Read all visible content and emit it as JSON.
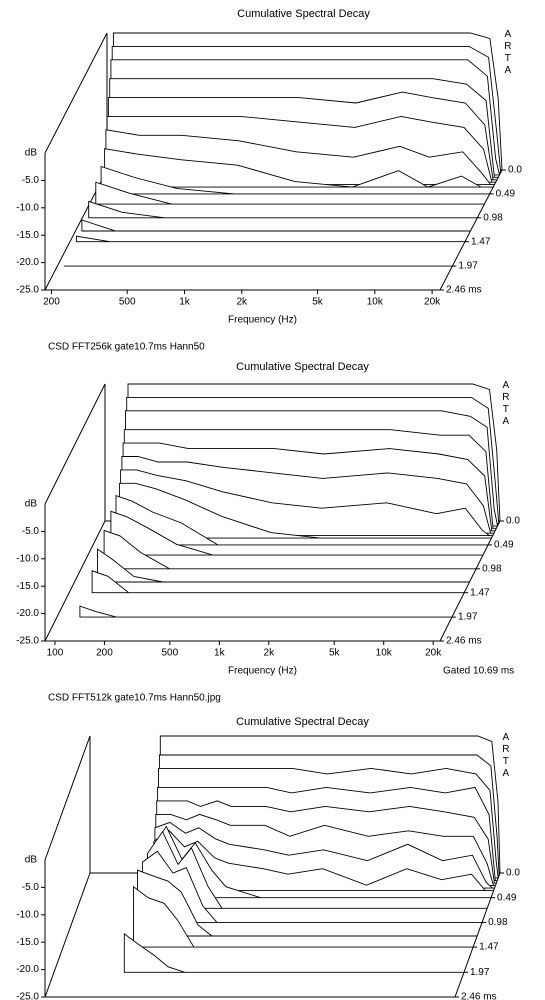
{
  "captions": [
    "CSD FFT256k gate10.7ms Hann50",
    "CSD FFT512k gate10.7ms Hann50.jpg"
  ],
  "chart_data": [
    {
      "type": "waterfall",
      "title": "Cumulative Spectral Decay",
      "xlabel": "Frequency (Hz)",
      "ylabel": "dB",
      "watermark": "ARTA",
      "log_x": true,
      "xlim": [
        185,
        22000
      ],
      "xticks": [
        200,
        500,
        {
          "value": 1000,
          "label": "1k"
        },
        {
          "value": 2000,
          "label": "2k"
        },
        {
          "value": 5000,
          "label": "5k"
        },
        {
          "value": 10000,
          "label": "10k"
        },
        {
          "value": 20000,
          "label": "20k"
        }
      ],
      "ylim": [
        -25,
        0
      ],
      "yticks": [
        {
          "value": -5,
          "label": "-5.0"
        },
        {
          "value": -10,
          "label": "-10.0"
        },
        {
          "value": -15,
          "label": "-15.0"
        },
        {
          "value": -20,
          "label": "-20.0"
        },
        {
          "value": -25,
          "label": "-25.0"
        }
      ],
      "tlim": [
        0,
        2.46
      ],
      "tticks": [
        {
          "value": 0,
          "label": "0.0"
        },
        0.49,
        0.98,
        1.47,
        1.97,
        {
          "value": 2.46,
          "label": "2.46 ms"
        }
      ],
      "x": [
        200,
        300,
        500,
        1000,
        2000,
        4000,
        7000,
        10000,
        15000,
        19000,
        21000
      ],
      "series": [
        {
          "time": 0,
          "values": [
            0,
            0,
            0,
            0,
            0,
            0,
            0,
            0,
            0,
            -1,
            -12
          ]
        },
        {
          "time": 0.05,
          "values": [
            -2,
            -2,
            -2,
            -2,
            -2,
            -2,
            -2,
            -2,
            -2,
            -4,
            -18
          ]
        },
        {
          "time": 0.1,
          "values": [
            -4,
            -4,
            -4,
            -4,
            -4,
            -4,
            -4,
            -4,
            -4,
            -7,
            -22
          ]
        },
        {
          "time": 0.15,
          "values": [
            -7,
            -7,
            -7,
            -7,
            -7,
            -7,
            -7,
            -7,
            -8,
            -11,
            -25
          ]
        },
        {
          "time": 0.2,
          "values": [
            -10,
            -10,
            -10,
            -10,
            -10,
            -11,
            -9,
            -10,
            -11,
            -15,
            -25
          ]
        },
        {
          "time": 0.25,
          "values": [
            -13,
            -13,
            -13,
            -13,
            -14,
            -15,
            -13,
            -14,
            -15,
            -19,
            -25
          ]
        },
        {
          "time": 0.3,
          "values": [
            -15,
            -16,
            -16,
            -17,
            -19,
            -20,
            -18,
            -20,
            -19,
            -23,
            -25
          ]
        },
        {
          "time": 0.35,
          "values": [
            -18,
            -19,
            -20,
            -21,
            -24,
            -25,
            -22,
            -25,
            -23,
            -25,
            -25
          ]
        },
        {
          "time": 0.49,
          "values": [
            -20,
            -22,
            -24,
            -25,
            -25,
            -25,
            -25,
            -25,
            -25,
            -25,
            -25
          ]
        },
        {
          "time": 0.7,
          "values": [
            -21,
            -23,
            -25,
            -25,
            -25,
            -25,
            -25,
            -25,
            -25,
            -25,
            -25
          ]
        },
        {
          "time": 0.98,
          "values": [
            -22,
            -24,
            -25,
            -25,
            -25,
            -25,
            -25,
            -25,
            -25,
            -25,
            -25
          ]
        },
        {
          "time": 1.25,
          "values": [
            -23,
            -25,
            -25,
            -25,
            -25,
            -25,
            -25,
            -25,
            -25,
            -25,
            -25
          ]
        },
        {
          "time": 1.47,
          "values": [
            -24,
            -25,
            -25,
            -25,
            -25,
            -25,
            -25,
            -25,
            -25,
            -25,
            -25
          ]
        },
        {
          "time": 1.97,
          "values": [
            -25,
            -25,
            -25,
            -25,
            -25,
            -25,
            -25,
            -25,
            -25,
            -25,
            -25
          ]
        },
        {
          "time": 2.46,
          "values": [
            -25,
            -25,
            -25,
            -25,
            -25,
            -25,
            -25,
            -25,
            -25,
            -25,
            -25
          ]
        }
      ]
    },
    {
      "type": "waterfall",
      "title": "Cumulative Spectral Decay",
      "xlabel": "Frequency (Hz)",
      "ylabel": "dB",
      "watermark": "ARTA",
      "note": "Gated 10.69 ms",
      "log_x": true,
      "xlim": [
        87,
        22000
      ],
      "xticks": [
        100,
        200,
        500,
        {
          "value": 1000,
          "label": "1k"
        },
        {
          "value": 2000,
          "label": "2k"
        },
        {
          "value": 5000,
          "label": "5k"
        },
        {
          "value": 10000,
          "label": "10k"
        },
        {
          "value": 20000,
          "label": "20k"
        }
      ],
      "ylim": [
        -25,
        0
      ],
      "yticks": [
        {
          "value": -5,
          "label": "-5.0"
        },
        {
          "value": -10,
          "label": "-10.0"
        },
        {
          "value": -15,
          "label": "-15.0"
        },
        {
          "value": -20,
          "label": "-20.0"
        },
        {
          "value": -25,
          "label": "-25.0"
        }
      ],
      "tlim": [
        0,
        2.46
      ],
      "tticks": [
        {
          "value": 0,
          "label": "0.0"
        },
        0.49,
        0.98,
        1.47,
        1.97,
        {
          "value": 2.46,
          "label": "2.46 ms"
        }
      ],
      "x": [
        120,
        150,
        200,
        300,
        500,
        1000,
        2000,
        5000,
        10000,
        15000,
        19000,
        21000
      ],
      "series": [
        {
          "time": 0,
          "values": [
            0,
            0,
            0,
            0,
            0,
            0,
            0,
            0,
            0,
            0,
            -1,
            -12
          ]
        },
        {
          "time": 0.05,
          "values": [
            -2,
            -2,
            -2,
            -2,
            -2,
            -2,
            -2,
            -2,
            -2,
            -2,
            -4,
            -18
          ]
        },
        {
          "time": 0.1,
          "values": [
            -4,
            -4,
            -4,
            -4,
            -4,
            -4,
            -4,
            -4,
            -4,
            -5,
            -7,
            -22
          ]
        },
        {
          "time": 0.15,
          "values": [
            -7,
            -7,
            -7,
            -7,
            -7,
            -7,
            -7,
            -7,
            -8,
            -8,
            -11,
            -25
          ]
        },
        {
          "time": 0.2,
          "values": [
            -9,
            -9,
            -9,
            -10,
            -10,
            -10,
            -11,
            -10,
            -11,
            -12,
            -15,
            -25
          ]
        },
        {
          "time": 0.25,
          "values": [
            -11,
            -11,
            -12,
            -12,
            -13,
            -14,
            -15,
            -14,
            -15,
            -16,
            -20,
            -25
          ]
        },
        {
          "time": 0.3,
          "values": [
            -13,
            -13,
            -14,
            -15,
            -17,
            -19,
            -20,
            -19,
            -21,
            -20,
            -24,
            -25
          ]
        },
        {
          "time": 0.35,
          "values": [
            -15,
            -15,
            -16,
            -18,
            -21,
            -24,
            -25,
            -25,
            -25,
            -25,
            -25,
            -25
          ]
        },
        {
          "time": 0.49,
          "values": [
            -16,
            -17,
            -19,
            -21,
            -25,
            -25,
            -25,
            -25,
            -25,
            -25,
            -25,
            -25
          ]
        },
        {
          "time": 0.7,
          "values": [
            -17,
            -18,
            -20,
            -23,
            -25,
            -25,
            -25,
            -25,
            -25,
            -25,
            -25,
            -25
          ]
        },
        {
          "time": 0.98,
          "values": [
            -18,
            -19,
            -22,
            -25,
            -25,
            -25,
            -25,
            -25,
            -25,
            -25,
            -25,
            -25
          ]
        },
        {
          "time": 1.25,
          "values": [
            -19,
            -21,
            -24,
            -25,
            -25,
            -25,
            -25,
            -25,
            -25,
            -25,
            -25,
            -25
          ]
        },
        {
          "time": 1.47,
          "values": [
            -21,
            -22,
            -25,
            -25,
            -25,
            -25,
            -25,
            -25,
            -25,
            -25,
            -25,
            -25
          ]
        },
        {
          "time": 1.97,
          "values": [
            -23,
            -24,
            -25,
            -25,
            -25,
            -25,
            -25,
            -25,
            -25,
            -25,
            -25,
            -25
          ]
        },
        {
          "time": 2.46,
          "values": [
            -25,
            -25,
            -25,
            -25,
            -25,
            -25,
            -25,
            -25,
            -25,
            -25,
            -25,
            -25
          ]
        }
      ]
    },
    {
      "type": "waterfall",
      "title": "Cumulative Spectral Decay",
      "ylabel": "dB",
      "watermark": "ARTA",
      "log_x": true,
      "xlim": [
        185,
        22000
      ],
      "ylim": [
        -25,
        0
      ],
      "yticks": [
        {
          "value": -5,
          "label": "-5.0"
        },
        {
          "value": -10,
          "label": "-10.0"
        },
        {
          "value": -15,
          "label": "-15.0"
        },
        {
          "value": -20,
          "label": "-20.0"
        },
        {
          "value": -25,
          "label": "-25.0"
        }
      ],
      "tlim": [
        0,
        2.46
      ],
      "tticks": [
        {
          "value": 0,
          "label": "0.0"
        },
        0.49,
        0.98,
        1.47,
        1.97,
        {
          "value": 2.46,
          "label": "2.46 ms"
        }
      ],
      "x": [
        420,
        500,
        600,
        700,
        850,
        1000,
        1500,
        2000,
        3000,
        5000,
        8000,
        12000,
        17000,
        20000,
        21500
      ],
      "series": [
        {
          "time": 0,
          "values": [
            0,
            0,
            0,
            0,
            0,
            0,
            0,
            0,
            0,
            0,
            0,
            0,
            0,
            -1,
            -12
          ]
        },
        {
          "time": 0.05,
          "values": [
            -3,
            -3,
            -3,
            -3,
            -3,
            -3,
            -3,
            -3,
            -3,
            -3,
            -3,
            -3,
            -3,
            -5,
            -18
          ]
        },
        {
          "time": 0.1,
          "values": [
            -5,
            -5,
            -5,
            -5,
            -5,
            -5,
            -5,
            -5,
            -6,
            -5,
            -6,
            -5,
            -6,
            -9,
            -22
          ]
        },
        {
          "time": 0.15,
          "values": [
            -8,
            -8,
            -8,
            -8,
            -8,
            -8,
            -8,
            -9,
            -8,
            -9,
            -8,
            -9,
            -8,
            -13,
            -25
          ]
        },
        {
          "time": 0.2,
          "values": [
            -10,
            -10,
            -10,
            -11,
            -10,
            -11,
            -11,
            -12,
            -11,
            -12,
            -11,
            -12,
            -13,
            -17,
            -25
          ]
        },
        {
          "time": 0.25,
          "values": [
            -12,
            -12,
            -13,
            -12,
            -13,
            -14,
            -14,
            -16,
            -14,
            -16,
            -15,
            -16,
            -16,
            -21,
            -25
          ]
        },
        {
          "time": 0.3,
          "values": [
            -14,
            -13,
            -15,
            -14,
            -16,
            -17,
            -18,
            -19,
            -18,
            -20,
            -17,
            -20,
            -19,
            -24,
            -25
          ]
        },
        {
          "time": 0.35,
          "values": [
            -16,
            -14,
            -17,
            -16,
            -19,
            -20,
            -21,
            -22,
            -21,
            -24,
            -21,
            -23,
            -22,
            -25,
            -25
          ]
        },
        {
          "time": 0.49,
          "values": [
            -16,
            -12,
            -18,
            -15,
            -20,
            -23,
            -25,
            -25,
            -25,
            -25,
            -25,
            -25,
            -25,
            -25,
            -25
          ]
        },
        {
          "time": 0.7,
          "values": [
            -15,
            -11,
            -17,
            -14,
            -21,
            -25,
            -25,
            -25,
            -25,
            -25,
            -25,
            -25,
            -25,
            -25,
            -25
          ]
        },
        {
          "time": 0.98,
          "values": [
            -14,
            -12,
            -16,
            -15,
            -22,
            -25,
            -25,
            -25,
            -25,
            -25,
            -25,
            -25,
            -25,
            -25,
            -25
          ]
        },
        {
          "time": 1.25,
          "values": [
            -13,
            -14,
            -15,
            -17,
            -23,
            -25,
            -25,
            -25,
            -25,
            -25,
            -25,
            -25,
            -25,
            -25,
            -25
          ]
        },
        {
          "time": 1.47,
          "values": [
            -14,
            -16,
            -17,
            -20,
            -25,
            -25,
            -25,
            -25,
            -25,
            -25,
            -25,
            -25,
            -25,
            -25,
            -25
          ]
        },
        {
          "time": 1.97,
          "values": [
            -18,
            -20,
            -22,
            -24,
            -25,
            -25,
            -25,
            -25,
            -25,
            -25,
            -25,
            -25,
            -25,
            -25,
            -25
          ]
        },
        {
          "time": 2.46,
          "values": [
            -25,
            -25,
            -25,
            -25,
            -25,
            -25,
            -25,
            -25,
            -25,
            -25,
            -25,
            -25,
            -25,
            -25,
            -25
          ]
        }
      ]
    }
  ]
}
